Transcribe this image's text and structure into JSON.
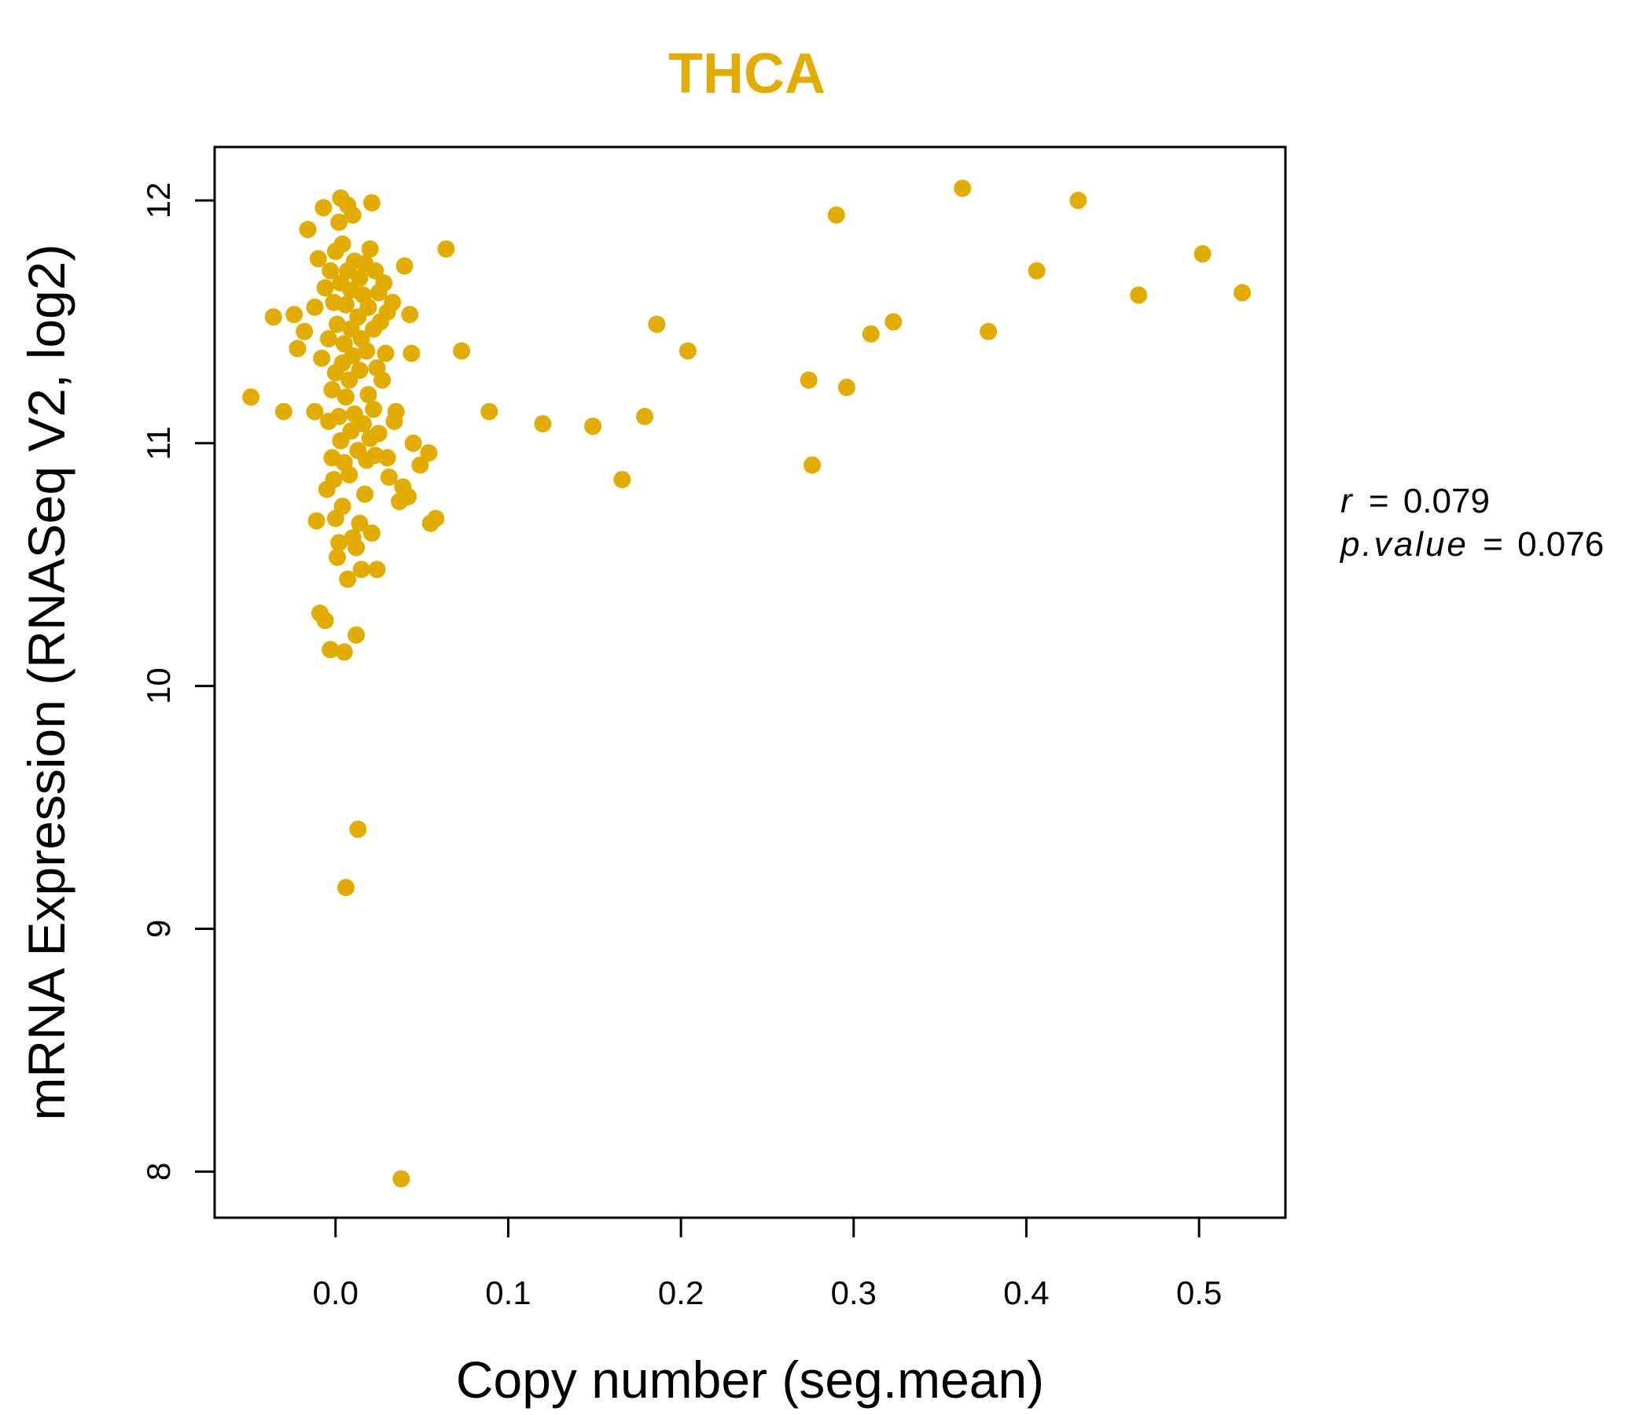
{
  "chart_data": {
    "type": "scatter",
    "title": "THCA",
    "xlabel": "Copy number (seg.mean)",
    "ylabel": "mRNA Expression (RNASeq V2, log2)",
    "xlim": [
      -0.07,
      0.55
    ],
    "ylim": [
      7.81,
      12.22
    ],
    "x_ticks": [
      0.0,
      0.1,
      0.2,
      0.3,
      0.4,
      0.5
    ],
    "x_tick_labels": [
      "0.0",
      "0.1",
      "0.2",
      "0.3",
      "0.4",
      "0.5"
    ],
    "y_ticks": [
      8,
      9,
      10,
      11,
      12
    ],
    "y_tick_labels": [
      "8",
      "9",
      "10",
      "11",
      "12"
    ],
    "point_color": "#E3AC00",
    "grid": false,
    "stats": {
      "r_symbol": "r",
      "r_value": "0.079",
      "p_symbol": "p.value",
      "p_value": "0.076",
      "equals": "="
    },
    "points": [
      [
        -0.049,
        11.19
      ],
      [
        -0.036,
        11.52
      ],
      [
        -0.03,
        11.13
      ],
      [
        -0.024,
        11.53
      ],
      [
        -0.022,
        11.39
      ],
      [
        -0.018,
        11.46
      ],
      [
        -0.016,
        11.88
      ],
      [
        -0.012,
        11.56
      ],
      [
        -0.012,
        11.13
      ],
      [
        -0.011,
        10.68
      ],
      [
        -0.01,
        11.76
      ],
      [
        -0.009,
        10.3
      ],
      [
        -0.008,
        11.35
      ],
      [
        -0.007,
        11.97
      ],
      [
        -0.006,
        11.64
      ],
      [
        -0.006,
        10.27
      ],
      [
        -0.005,
        10.81
      ],
      [
        -0.004,
        11.09
      ],
      [
        -0.004,
        11.43
      ],
      [
        -0.003,
        11.71
      ],
      [
        -0.003,
        10.15
      ],
      [
        -0.002,
        10.94
      ],
      [
        -0.002,
        11.22
      ],
      [
        -0.001,
        11.58
      ],
      [
        -0.001,
        10.85
      ],
      [
        0.0,
        11.79
      ],
      [
        0.0,
        11.29
      ],
      [
        0.0,
        10.69
      ],
      [
        0.001,
        10.53
      ],
      [
        0.001,
        11.49
      ],
      [
        0.002,
        11.91
      ],
      [
        0.002,
        10.59
      ],
      [
        0.002,
        11.11
      ],
      [
        0.003,
        12.01
      ],
      [
        0.003,
        11.66
      ],
      [
        0.003,
        11.01
      ],
      [
        0.004,
        11.33
      ],
      [
        0.004,
        10.74
      ],
      [
        0.004,
        11.82
      ],
      [
        0.005,
        11.41
      ],
      [
        0.005,
        10.92
      ],
      [
        0.005,
        10.14
      ],
      [
        0.006,
        11.57
      ],
      [
        0.006,
        11.19
      ],
      [
        0.006,
        9.17
      ],
      [
        0.007,
        11.98
      ],
      [
        0.007,
        10.44
      ],
      [
        0.007,
        11.71
      ],
      [
        0.008,
        11.26
      ],
      [
        0.008,
        10.87
      ],
      [
        0.009,
        11.63
      ],
      [
        0.009,
        11.47
      ],
      [
        0.009,
        11.05
      ],
      [
        0.01,
        11.94
      ],
      [
        0.01,
        10.61
      ],
      [
        0.01,
        11.36
      ],
      [
        0.011,
        11.75
      ],
      [
        0.011,
        11.12
      ],
      [
        0.012,
        10.57
      ],
      [
        0.012,
        10.21
      ],
      [
        0.013,
        11.52
      ],
      [
        0.013,
        9.41
      ],
      [
        0.013,
        10.97
      ],
      [
        0.014,
        11.68
      ],
      [
        0.014,
        11.3
      ],
      [
        0.014,
        10.67
      ],
      [
        0.015,
        11.43
      ],
      [
        0.015,
        10.48
      ],
      [
        0.016,
        11.61
      ],
      [
        0.016,
        11.08
      ],
      [
        0.017,
        10.79
      ],
      [
        0.017,
        11.74
      ],
      [
        0.018,
        11.38
      ],
      [
        0.018,
        10.93
      ],
      [
        0.019,
        11.56
      ],
      [
        0.019,
        11.2
      ],
      [
        0.02,
        11.8
      ],
      [
        0.02,
        11.02
      ],
      [
        0.021,
        10.63
      ],
      [
        0.021,
        11.99
      ],
      [
        0.022,
        11.47
      ],
      [
        0.022,
        11.14
      ],
      [
        0.023,
        11.71
      ],
      [
        0.023,
        10.95
      ],
      [
        0.024,
        11.31
      ],
      [
        0.024,
        10.48
      ],
      [
        0.025,
        11.62
      ],
      [
        0.025,
        11.04
      ],
      [
        0.026,
        11.5
      ],
      [
        0.027,
        11.26
      ],
      [
        0.028,
        11.66
      ],
      [
        0.029,
        11.37
      ],
      [
        0.03,
        10.94
      ],
      [
        0.03,
        11.54
      ],
      [
        0.031,
        10.86
      ],
      [
        0.033,
        11.58
      ],
      [
        0.034,
        11.09
      ],
      [
        0.035,
        11.13
      ],
      [
        0.037,
        10.76
      ],
      [
        0.038,
        7.97
      ],
      [
        0.039,
        10.82
      ],
      [
        0.04,
        11.73
      ],
      [
        0.042,
        10.78
      ],
      [
        0.043,
        11.53
      ],
      [
        0.044,
        11.37
      ],
      [
        0.045,
        11.0
      ],
      [
        0.049,
        10.91
      ],
      [
        0.054,
        10.96
      ],
      [
        0.055,
        10.67
      ],
      [
        0.058,
        10.69
      ],
      [
        0.064,
        11.8
      ],
      [
        0.073,
        11.38
      ],
      [
        0.089,
        11.13
      ],
      [
        0.12,
        11.08
      ],
      [
        0.149,
        11.07
      ],
      [
        0.166,
        10.85
      ],
      [
        0.179,
        11.11
      ],
      [
        0.186,
        11.49
      ],
      [
        0.204,
        11.38
      ],
      [
        0.274,
        11.26
      ],
      [
        0.276,
        10.91
      ],
      [
        0.29,
        11.94
      ],
      [
        0.296,
        11.23
      ],
      [
        0.31,
        11.45
      ],
      [
        0.323,
        11.5
      ],
      [
        0.363,
        12.05
      ],
      [
        0.378,
        11.46
      ],
      [
        0.406,
        11.71
      ],
      [
        0.43,
        12.0
      ],
      [
        0.465,
        11.61
      ],
      [
        0.502,
        11.78
      ],
      [
        0.525,
        11.62
      ]
    ]
  }
}
